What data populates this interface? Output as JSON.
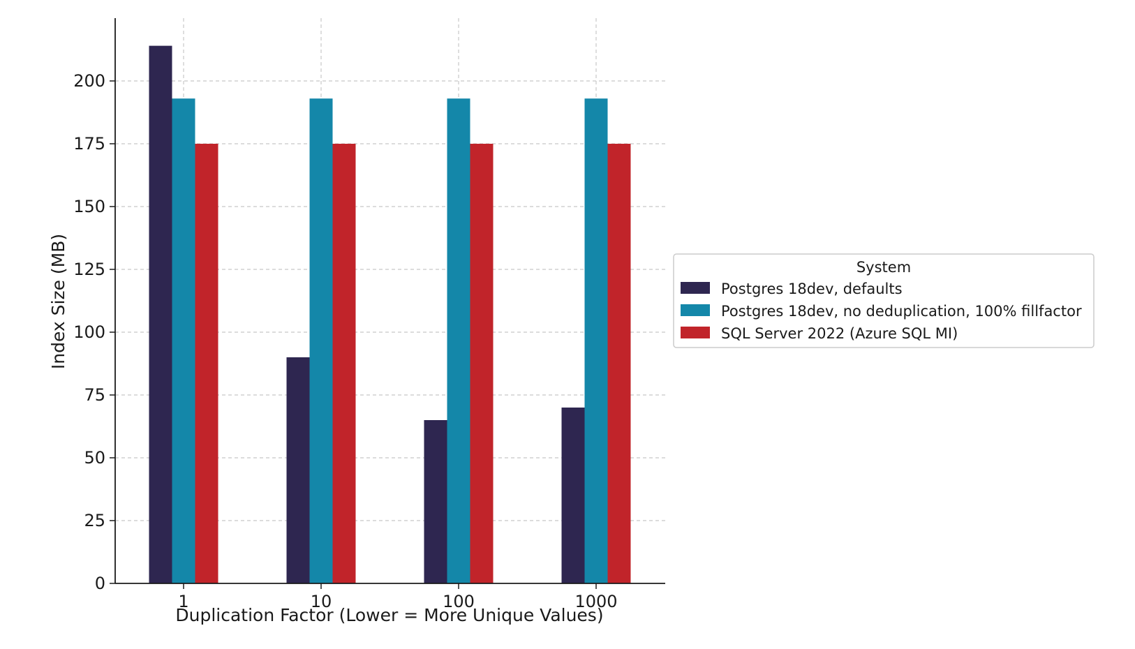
{
  "chart_data": {
    "type": "bar",
    "title": "",
    "xlabel": "Duplication Factor (Lower = More Unique Values)",
    "ylabel": "Index Size (MB)",
    "categories": [
      "1",
      "10",
      "100",
      "1000"
    ],
    "ylim": [
      0,
      225
    ],
    "yticks": [
      0,
      25,
      50,
      75,
      100,
      125,
      150,
      175,
      200
    ],
    "ytick_labels": [
      "0",
      "25",
      "50",
      "75",
      "100",
      "125",
      "150",
      "175",
      "200"
    ],
    "grid": true,
    "legend": {
      "title": "System",
      "placement": "outside-right"
    },
    "series": [
      {
        "name": "Postgres 18dev, defaults",
        "color": "#2e2650",
        "values": [
          214,
          90,
          65,
          70
        ]
      },
      {
        "name": "Postgres 18dev, no deduplication, 100% fillfactor",
        "color": "#1487a9",
        "values": [
          193,
          193,
          193,
          193
        ]
      },
      {
        "name": "SQL Server 2022 (Azure SQL MI)",
        "color": "#c1242a",
        "values": [
          175,
          175,
          175,
          175
        ]
      }
    ]
  }
}
